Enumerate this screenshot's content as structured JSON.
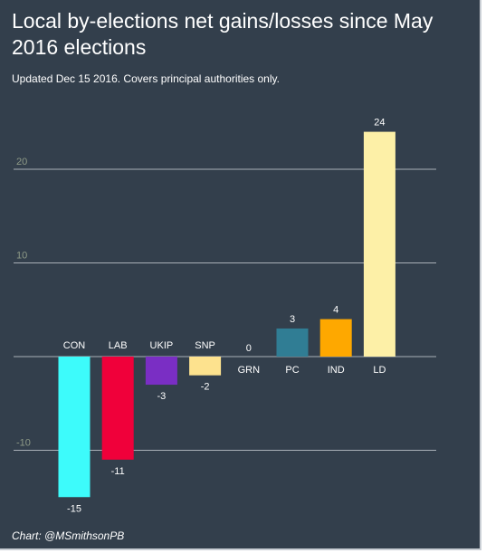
{
  "title": "Local by-elections net gains/losses since May 2016 elections",
  "subtitle": "Updated Dec 15 2016. Covers principal authorities only.",
  "credit": "Chart: @MSmithsonPB",
  "chart_data": {
    "type": "bar",
    "title": "Local by-elections net gains/losses since May 2016 elections",
    "xlabel": "",
    "ylabel": "",
    "categories": [
      "CON",
      "LAB",
      "UKIP",
      "SNP",
      "GRN",
      "PC",
      "IND",
      "LD"
    ],
    "values": [
      -15,
      -11,
      -3,
      -2,
      0,
      3,
      4,
      24
    ],
    "colors": [
      "#3dfbfb",
      "#f0003a",
      "#7a2ec4",
      "#fde28e",
      "#70c040",
      "#307d94",
      "#fea800",
      "#fdf0a7"
    ],
    "yticks": [
      -10,
      10,
      20
    ],
    "ylim": [
      -17,
      25
    ],
    "grid": true,
    "legend": "none",
    "background": "#333f4c"
  }
}
